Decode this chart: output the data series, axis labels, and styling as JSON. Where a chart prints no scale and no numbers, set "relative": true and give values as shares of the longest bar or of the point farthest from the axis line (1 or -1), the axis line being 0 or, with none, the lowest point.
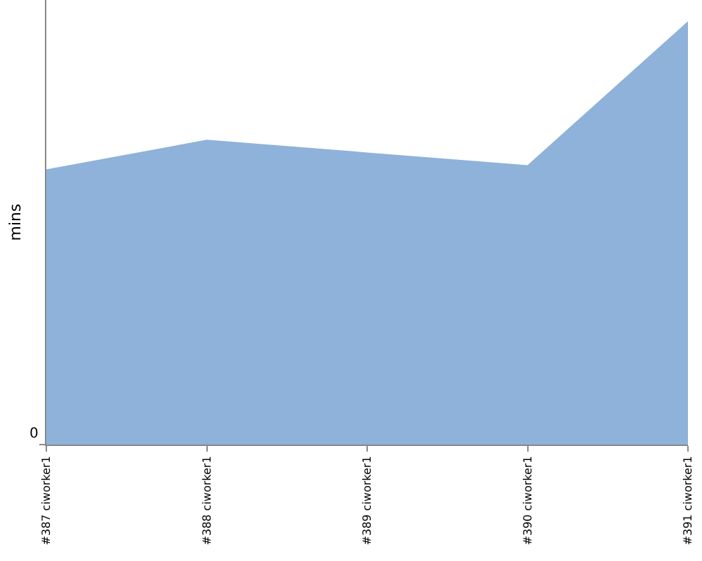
{
  "chart_data": {
    "type": "area",
    "ylabel": "mins",
    "relative": true,
    "categories": [
      "#387 ciworker1",
      "#388 ciworker1",
      "#389 ciworker1",
      "#390 ciworker1",
      "#391 ciworker1"
    ],
    "series": [
      {
        "color": "#8fb2da",
        "values": [
          0.65,
          0.72,
          0.69,
          0.66,
          1
        ]
      }
    ],
    "annotations": [
      "0"
    ]
  }
}
